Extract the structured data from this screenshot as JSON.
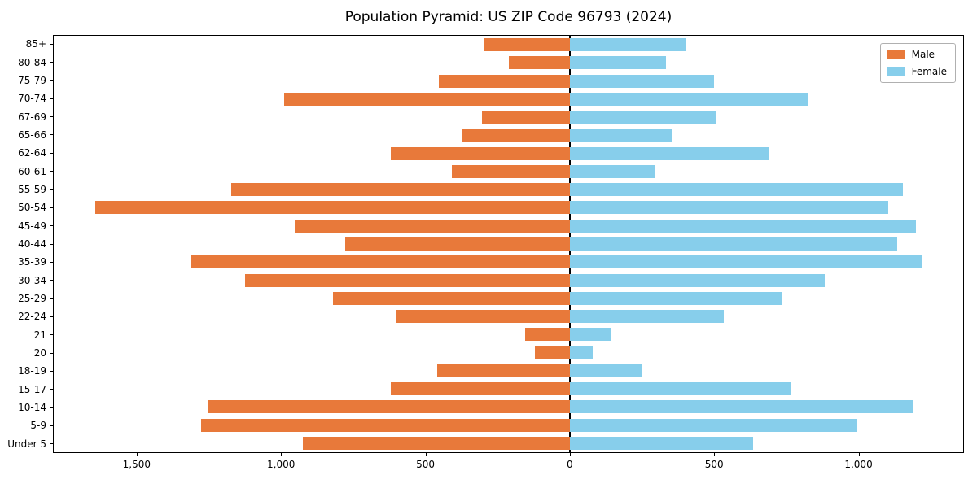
{
  "title": "Population Pyramid: US ZIP Code 96793 (2024)",
  "legend": {
    "male_label": "Male",
    "female_label": "Female"
  },
  "colors": {
    "male": "#e8793a",
    "female": "#87ceeb",
    "axis": "#000000",
    "legend_border": "#b0b0b0"
  },
  "chart_data": {
    "type": "bar",
    "subtype": "population-pyramid",
    "title": "Population Pyramid: US ZIP Code 96793 (2024)",
    "categories": [
      "85+",
      "80-84",
      "75-79",
      "70-74",
      "67-69",
      "65-66",
      "62-64",
      "60-61",
      "55-59",
      "50-54",
      "45-49",
      "40-44",
      "35-39",
      "30-34",
      "25-29",
      "22-24",
      "21",
      "20",
      "18-19",
      "15-17",
      "10-14",
      "5-9",
      "Under 5"
    ],
    "series": [
      {
        "name": "Male",
        "side": "left",
        "color": "#e8793a",
        "values": [
          300,
          210,
          455,
          990,
          305,
          375,
          620,
          410,
          1175,
          1645,
          955,
          780,
          1315,
          1125,
          820,
          600,
          155,
          120,
          460,
          620,
          1255,
          1280,
          925
        ]
      },
      {
        "name": "Female",
        "side": "right",
        "color": "#87ceeb",
        "values": [
          405,
          335,
          500,
          825,
          505,
          355,
          690,
          295,
          1155,
          1105,
          1200,
          1135,
          1220,
          885,
          735,
          535,
          145,
          80,
          250,
          765,
          1190,
          995,
          635
        ]
      }
    ],
    "x_tick_labels": [
      "1,500",
      "1,000",
      "500",
      "0",
      "500",
      "1,000"
    ],
    "x_tick_values": [
      -1500,
      -1000,
      -500,
      0,
      500,
      1000
    ],
    "xlim": [
      -1790,
      1365
    ],
    "grid": false,
    "legend_position": "upper right"
  }
}
